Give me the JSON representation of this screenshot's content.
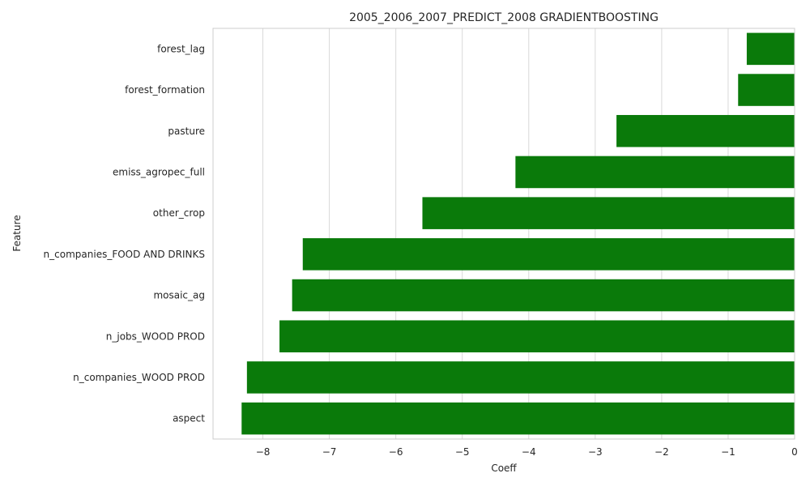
{
  "chart_data": {
    "type": "bar",
    "orientation": "horizontal",
    "title": "2005_2006_2007_PREDICT_2008 GRADIENTBOOSTING",
    "xlabel": "Coeff",
    "ylabel": "Feature",
    "categories": [
      "forest_lag",
      "forest_formation",
      "pasture",
      "emiss_agropec_full",
      "other_crop",
      "n_companies_FOOD AND DRINKS",
      "mosaic_ag",
      "n_jobs_WOOD PROD",
      "n_companies_WOOD PROD",
      "aspect"
    ],
    "values": [
      -0.72,
      -0.85,
      -2.68,
      -4.2,
      -5.6,
      -7.4,
      -7.56,
      -7.75,
      -8.24,
      -8.32
    ],
    "xlim": [
      -8.75,
      0
    ],
    "xticks": [
      -8,
      -7,
      -6,
      -5,
      -4,
      -3,
      -2,
      -1,
      0
    ],
    "xtick_labels": [
      "−8",
      "−7",
      "−6",
      "−5",
      "−4",
      "−3",
      "−2",
      "−1",
      "0"
    ],
    "grid": "vertical",
    "bar_color": "#0a7a0a"
  }
}
